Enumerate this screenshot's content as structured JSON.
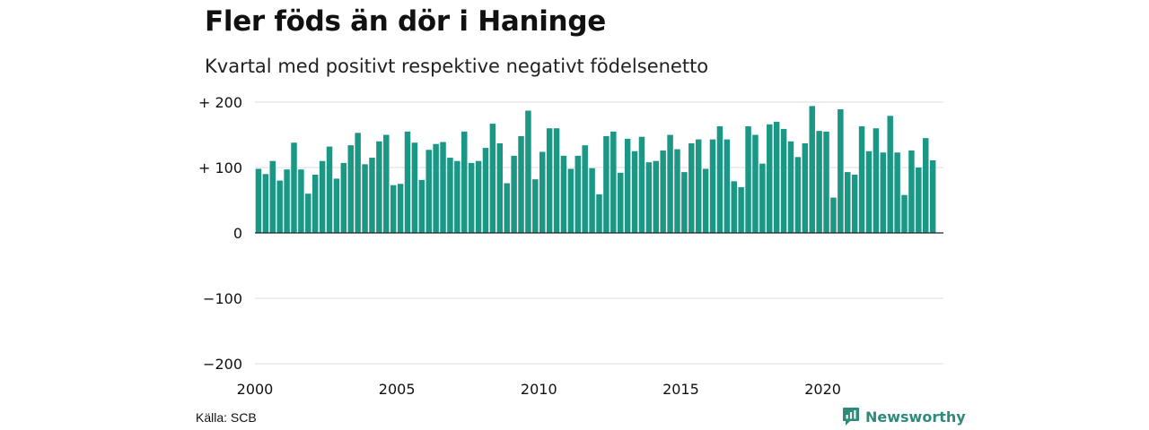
{
  "title": "Fler föds än dör i Haninge",
  "subtitle": "Kvartal med positivt respektive negativt födelsenetto",
  "source": "Källa: SCB",
  "logo": {
    "text": "Newsworthy",
    "icon": "newsworthy-chart-bubble-icon",
    "color": "#2e8b7a"
  },
  "colors": {
    "bar": "#1a9885",
    "grid": "#dddddd",
    "zero_line": "#222222"
  },
  "chart_data": {
    "type": "bar",
    "x_start": 2000.0,
    "x_step": 0.25,
    "xlim": [
      2000,
      2024.25
    ],
    "ylim": [
      -200,
      200
    ],
    "y_ticks": [
      200,
      100,
      0,
      -100,
      -200
    ],
    "y_tick_labels": [
      "+ 200",
      "+ 100",
      "0",
      "−100",
      "−200"
    ],
    "x_ticks": [
      2000,
      2005,
      2010,
      2015,
      2020
    ],
    "x_tick_labels": [
      "2000",
      "2005",
      "2010",
      "2015",
      "2020"
    ],
    "grid": true,
    "values": [
      98,
      90,
      110,
      80,
      97,
      138,
      97,
      60,
      89,
      110,
      132,
      83,
      107,
      134,
      153,
      105,
      115,
      140,
      150,
      73,
      75,
      155,
      138,
      81,
      127,
      136,
      139,
      115,
      110,
      155,
      107,
      110,
      130,
      167,
      137,
      76,
      118,
      148,
      187,
      82,
      124,
      160,
      160,
      118,
      98,
      118,
      134,
      99,
      59,
      148,
      155,
      92,
      144,
      125,
      147,
      108,
      110,
      126,
      150,
      128,
      93,
      137,
      143,
      98,
      143,
      163,
      143,
      79,
      70,
      163,
      150,
      106,
      166,
      170,
      159,
      140,
      116,
      137,
      194,
      156,
      155,
      54,
      189,
      93,
      89,
      163,
      125,
      160,
      123,
      179,
      123,
      58,
      126,
      100,
      145,
      111
    ]
  }
}
